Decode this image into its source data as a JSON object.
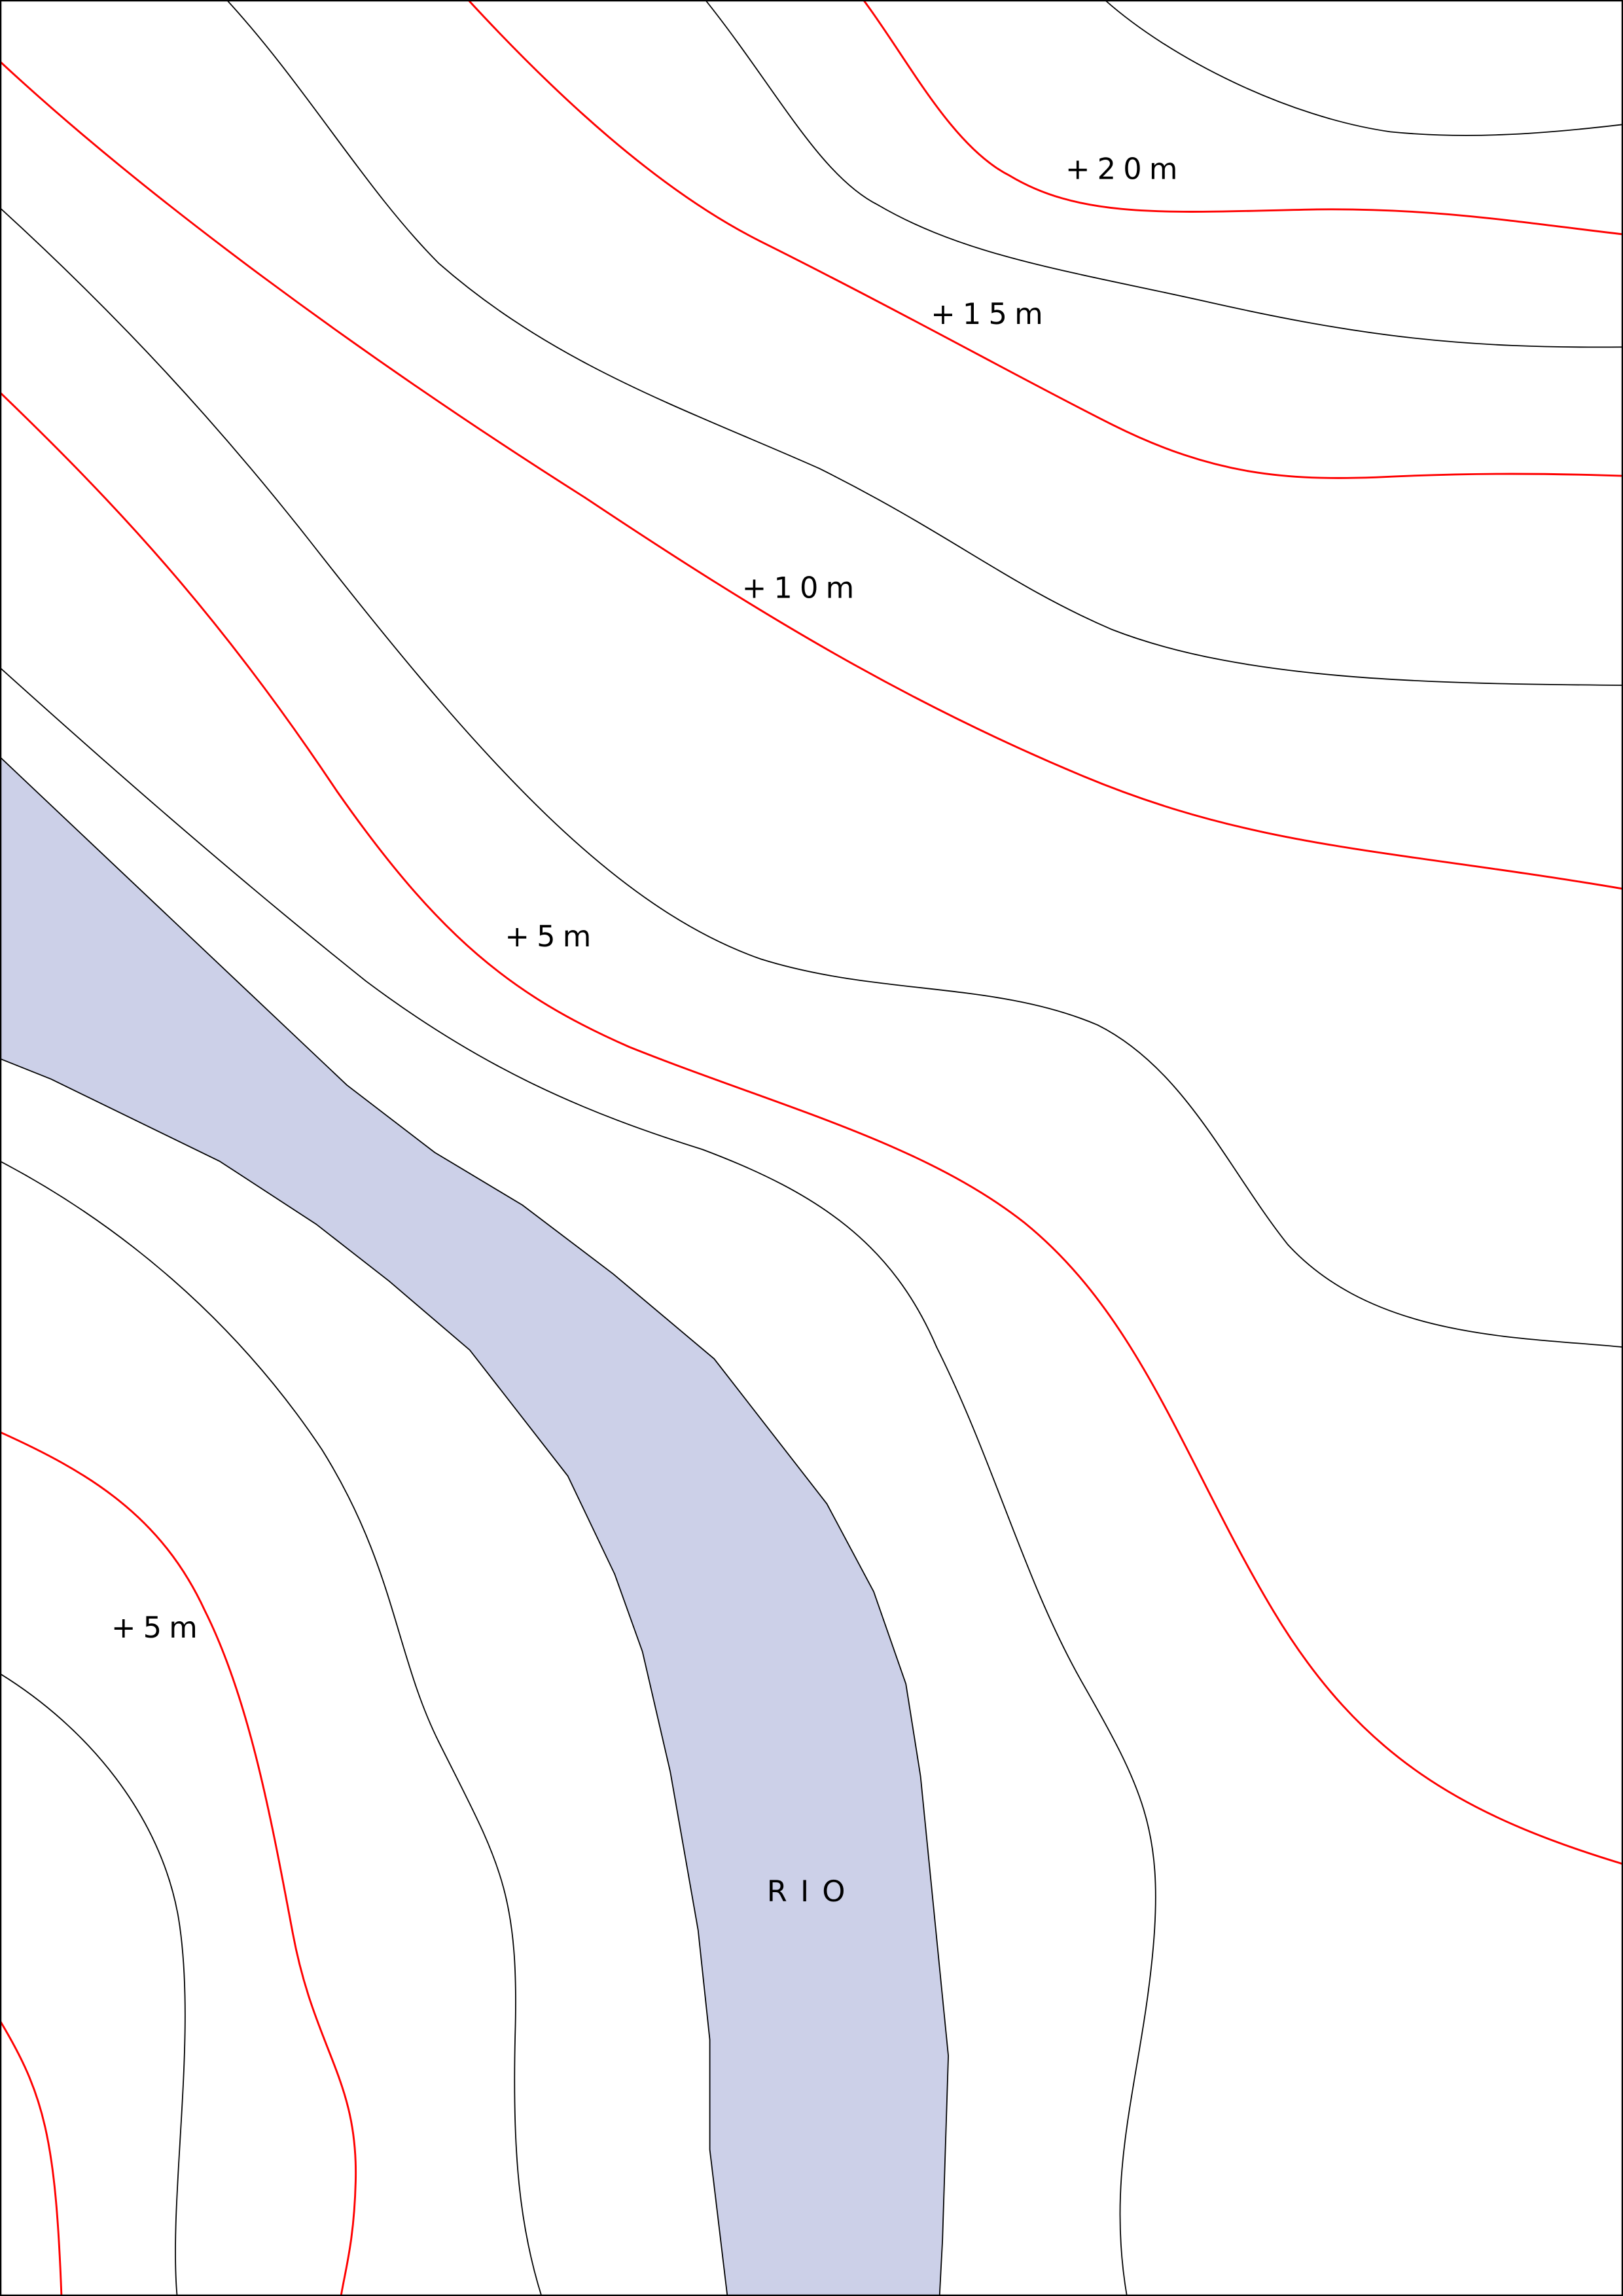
{
  "contour_labels": [
    "+20m",
    "+15m",
    "+10m",
    "+5m",
    "+5m"
  ],
  "river_label": "RIO"
}
